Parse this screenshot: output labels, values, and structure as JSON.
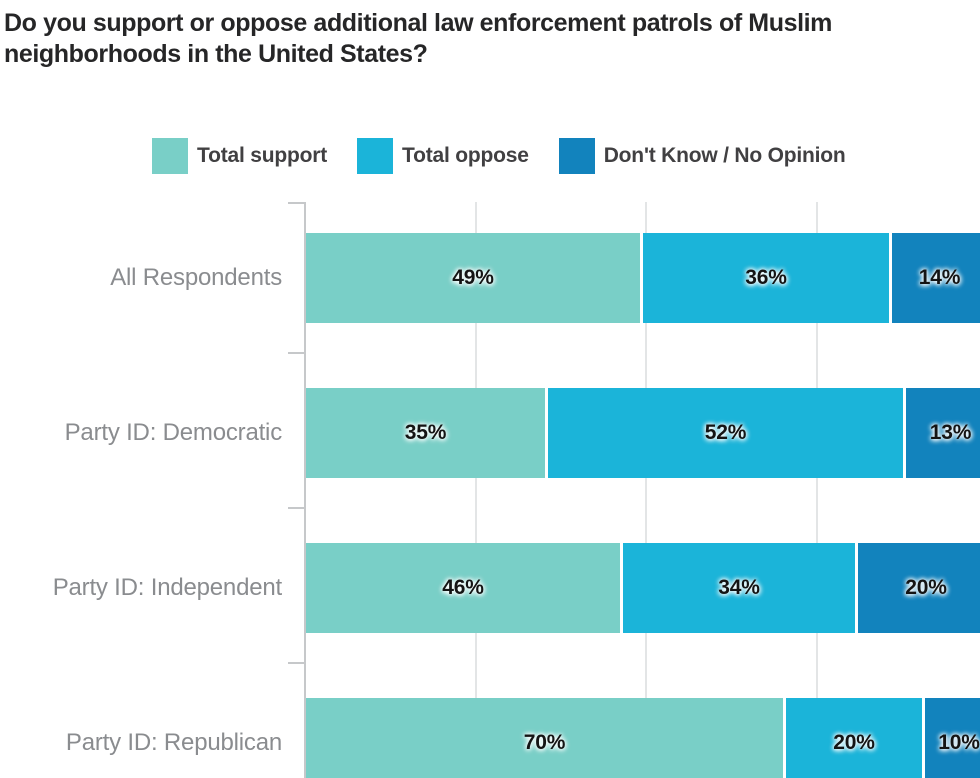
{
  "title": {
    "line1": "Do you support or oppose additional law enforcement patrols of Muslim",
    "line2": "neighborhoods in the United States?"
  },
  "legend": {
    "items": [
      {
        "label": "Total support",
        "color": "#79cfc7"
      },
      {
        "label": "Total oppose",
        "color": "#1bb4d9"
      },
      {
        "label": "Don't Know / No Opinion",
        "color": "#1283bd"
      }
    ]
  },
  "chart_data": {
    "type": "bar",
    "orientation": "horizontal",
    "stacked": true,
    "title": "Do you support or oppose additional law enforcement patrols of Muslim neighborhoods in the United States?",
    "categories": [
      "All Respondents",
      "Party ID: Democratic",
      "Party ID: Independent",
      "Party ID: Republican"
    ],
    "series": [
      {
        "name": "Total support",
        "color": "#79cfc7",
        "values": [
          49,
          35,
          46,
          70
        ]
      },
      {
        "name": "Total oppose",
        "color": "#1bb4d9",
        "values": [
          36,
          52,
          34,
          20
        ]
      },
      {
        "name": "Don't Know / No Opinion",
        "color": "#1283bd",
        "values": [
          14,
          13,
          20,
          10
        ]
      }
    ],
    "value_suffix": "%",
    "xlim": [
      0,
      100
    ],
    "gridlines_pct": [
      25,
      50,
      75,
      100
    ],
    "grid": true,
    "legend_position": "top",
    "axis_color": "#c6c8ca",
    "grid_color": "#e3e5e6",
    "label_color": "#8a8c8f"
  }
}
